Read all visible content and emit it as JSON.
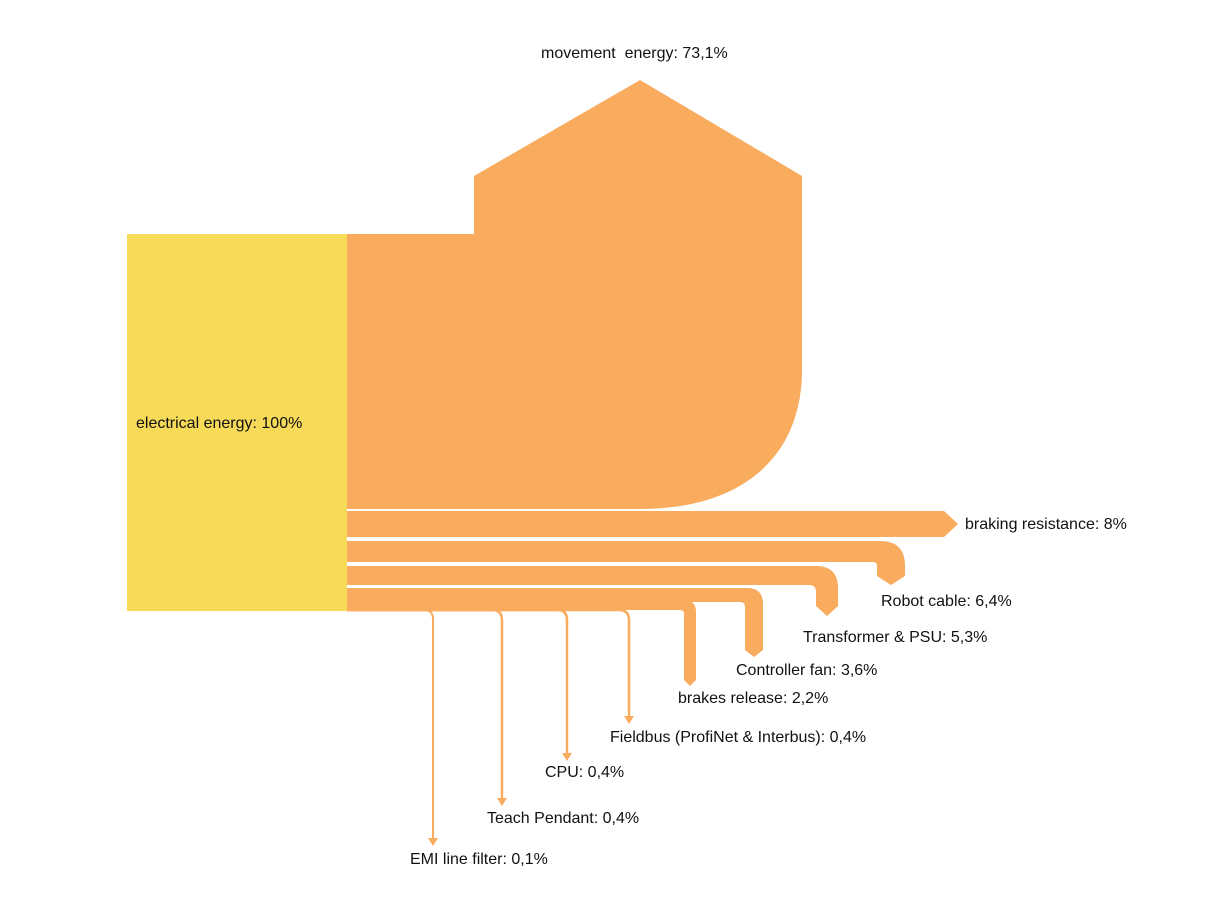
{
  "colors": {
    "source": "#F7DA58",
    "flow": "#F9AB5E",
    "background": "#FFFFFF",
    "text": "#111111"
  },
  "source": {
    "label": "electrical energy: 100%",
    "value": 100
  },
  "flows": [
    {
      "id": "movement",
      "label": "movement  energy: 73,1%",
      "value": 73.1
    },
    {
      "id": "braking",
      "label": "braking resistance: 8%",
      "value": 8
    },
    {
      "id": "robot-cable",
      "label": "Robot cable: 6,4%",
      "value": 6.4
    },
    {
      "id": "transformer",
      "label": "Transformer & PSU: 5,3%",
      "value": 5.3
    },
    {
      "id": "controller-fan",
      "label": "Controller fan: 3,6%",
      "value": 3.6
    },
    {
      "id": "brakes-release",
      "label": "brakes release: 2,2%",
      "value": 2.2
    },
    {
      "id": "fieldbus",
      "label": "Fieldbus (ProfiNet & Interbus): 0,4%",
      "value": 0.4
    },
    {
      "id": "cpu",
      "label": "CPU: 0,4%",
      "value": 0.4
    },
    {
      "id": "teach-pendant",
      "label": "Teach Pendant: 0,4%",
      "value": 0.4
    },
    {
      "id": "emi-filter",
      "label": "EMI line filter: 0,1%",
      "value": 0.1
    }
  ]
}
